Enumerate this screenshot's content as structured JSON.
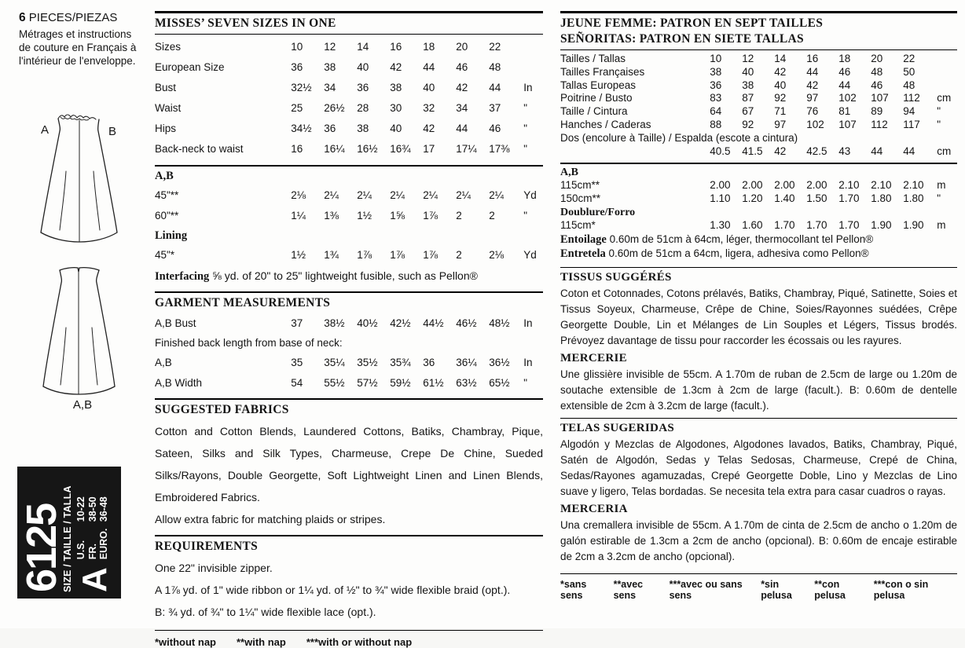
{
  "sidebar": {
    "pieces_number": "6",
    "pieces_label": "PIECES/PIEZAS",
    "note_lines": [
      "Métrages et instructions",
      "de couture en Français à",
      "l'intérieur de l'enveloppe."
    ],
    "front_view": {
      "label_a": "A",
      "label_b": "B"
    },
    "back_view_label": "A,B",
    "size_block": {
      "number": "6125",
      "size_label": "SIZE / TAILLE / TALLA",
      "letter": "A",
      "ranges": [
        {
          "label": "U.S.",
          "value": "10-22"
        },
        {
          "label": "FR.",
          "value": "38-50"
        },
        {
          "label": "EURO.",
          "value": "36-48"
        }
      ]
    }
  },
  "left_column": {
    "title": "MISSES’ SEVEN SIZES IN ONE",
    "size_table": {
      "rows": [
        {
          "label": "Sizes",
          "values": [
            "10",
            "12",
            "14",
            "16",
            "18",
            "20",
            "22"
          ],
          "unit": ""
        },
        {
          "label": "European Size",
          "values": [
            "36",
            "38",
            "40",
            "42",
            "44",
            "46",
            "48"
          ],
          "unit": ""
        },
        {
          "label": "Bust",
          "values": [
            "32½",
            "34",
            "36",
            "38",
            "40",
            "42",
            "44"
          ],
          "unit": "In"
        },
        {
          "label": "Waist",
          "values": [
            "25",
            "26½",
            "28",
            "30",
            "32",
            "34",
            "37"
          ],
          "unit": "\""
        },
        {
          "label": "Hips",
          "values": [
            "34½",
            "36",
            "38",
            "40",
            "42",
            "44",
            "46"
          ],
          "unit": "\""
        },
        {
          "label": "Back-neck to waist",
          "values": [
            "16",
            "16¼",
            "16½",
            "16¾",
            "17",
            "17¼",
            "17⅜"
          ],
          "unit": "\""
        }
      ]
    },
    "yardage": {
      "ab_heading": "A,B",
      "rows": [
        {
          "label": "45\"**",
          "values": [
            "2⅛",
            "2¼",
            "2¼",
            "2¼",
            "2¼",
            "2¼",
            "2¼"
          ],
          "unit": "Yd"
        },
        {
          "label": "60\"**",
          "values": [
            "1¼",
            "1⅜",
            "1½",
            "1⅝",
            "1⅞",
            "2",
            "2"
          ],
          "unit": "\""
        }
      ],
      "lining_heading": "Lining",
      "lining_row": {
        "label": "45\"*",
        "values": [
          "1½",
          "1¾",
          "1⅞",
          "1⅞",
          "1⅞",
          "2",
          "2⅛"
        ],
        "unit": "Yd"
      },
      "interfacing_label": "Interfacing",
      "interfacing_text": " ⅝ yd. of 20\" to 25\" lightweight fusible, such as Pellon®"
    },
    "garment": {
      "title": "GARMENT MEASUREMENTS",
      "bust_row": {
        "label": "A,B Bust",
        "values": [
          "37",
          "38½",
          "40½",
          "42½",
          "44½",
          "46½",
          "48½"
        ],
        "unit": "In"
      },
      "note": "Finished back length from base of neck:",
      "rows": [
        {
          "label": "A,B",
          "values": [
            "35",
            "35¼",
            "35½",
            "35¾",
            "36",
            "36¼",
            "36½"
          ],
          "unit": "In"
        },
        {
          "label": "A,B Width",
          "values": [
            "54",
            "55½",
            "57½",
            "59½",
            "61½",
            "63½",
            "65½"
          ],
          "unit": "\""
        }
      ]
    },
    "fabrics": {
      "title": "SUGGESTED FABRICS",
      "body": "Cotton and Cotton Blends, Laundered Cottons, Batiks, Chambray, Pique, Sateen, Silks and Silk Types, Charmeuse, Crepe De Chine, Sueded Silks/Rayons, Double Georgette, Soft Lightweight Linen and Linen Blends, Embroidered Fabrics.",
      "note": "Allow extra fabric for matching plaids or stripes."
    },
    "requirements": {
      "title": "REQUIREMENTS",
      "lines": [
        "One 22\" invisible zipper.",
        "A 1⅞ yd. of 1\" wide ribbon or 1¼ yd. of ½\" to ¾\" wide flexible braid (opt.).",
        "B: ¾ yd. of ¾\" to 1¼\" wide flexible lace (opt.)."
      ]
    },
    "footnotes": [
      "*without nap",
      "**with nap",
      "***with or without nap"
    ]
  },
  "right_column": {
    "title_fr": "JEUNE FEMME: PATRON EN SEPT TAILLES",
    "title_es": "SEÑORITAS: PATRON EN SIETE TALLAS",
    "size_table": {
      "rows": [
        {
          "label": "Tailles / Tallas",
          "values": [
            "10",
            "12",
            "14",
            "16",
            "18",
            "20",
            "22"
          ],
          "unit": ""
        },
        {
          "label": "Tailles Françaises",
          "values": [
            "38",
            "40",
            "42",
            "44",
            "46",
            "48",
            "50"
          ],
          "unit": ""
        },
        {
          "label": "Tallas Europeas",
          "values": [
            "36",
            "38",
            "40",
            "42",
            "44",
            "46",
            "48"
          ],
          "unit": ""
        },
        {
          "label": "Poitrine / Busto",
          "values": [
            "83",
            "87",
            "92",
            "97",
            "102",
            "107",
            "112"
          ],
          "unit": "cm"
        },
        {
          "label": "Taille / Cintura",
          "values": [
            "64",
            "67",
            "71",
            "76",
            "81",
            "89",
            "94"
          ],
          "unit": "\""
        },
        {
          "label": "Hanches / Caderas",
          "values": [
            "88",
            "92",
            "97",
            "102",
            "107",
            "112",
            "117"
          ],
          "unit": "\""
        }
      ],
      "dos_label": "Dos (encolure à Taille) / Espalda (escote a cintura)",
      "dos_row": {
        "values": [
          "40.5",
          "41.5",
          "42",
          "42.5",
          "43",
          "44",
          "44"
        ],
        "unit": "cm"
      }
    },
    "metric": {
      "ab_heading": "A,B",
      "rows": [
        {
          "label": "115cm**",
          "values": [
            "2.00",
            "2.00",
            "2.00",
            "2.00",
            "2.10",
            "2.10",
            "2.10"
          ],
          "unit": "m"
        },
        {
          "label": "150cm**",
          "values": [
            "1.10",
            "1.20",
            "1.40",
            "1.50",
            "1.70",
            "1.80",
            "1.80"
          ],
          "unit": "\""
        }
      ],
      "doublure_heading": "Doublure/Forro",
      "doublure_row": {
        "label": "115cm*",
        "values": [
          "1.30",
          "1.60",
          "1.70",
          "1.70",
          "1.70",
          "1.90",
          "1.90"
        ],
        "unit": "m"
      },
      "entoilage_label": "Entoilage",
      "entoilage_text": " 0.60m de 51cm à 64cm, léger, thermocollant tel Pellon®",
      "entretela_label": "Entretela",
      "entretela_text": " 0.60m de 51cm a 64cm, ligera, adhesiva como Pellon®"
    },
    "tissus": {
      "title": "TISSUS SUGGÉRÉS",
      "body": "Coton et Cotonnades, Cotons prélavés, Batiks, Chambray, Piqué, Satinette, Soies et Tissus Soyeux, Charmeuse, Crêpe de Chine, Soies/Rayonnes suédées, Crêpe Georgette Double, Lin et Mélanges de Lin Souples et Légers, Tissus brodés. Prévoyez davantage de tissu pour raccorder les écossais ou les rayures."
    },
    "mercerie": {
      "title": "MERCERIE",
      "body": "Une glissière invisible de 55cm. A 1.70m de ruban de 2.5cm de large ou 1.20m de soutache extensible de 1.3cm à 2cm de large (facult.). B: 0.60m de dentelle extensible de 2cm à 3.2cm de large (facult.)."
    },
    "telas": {
      "title": "TELAS SUGERIDAS",
      "body": "Algodón y Mezclas de Algodones, Algodones lavados, Batiks, Chambray, Piqué, Satén de Algodón, Sedas y Telas Sedosas, Charmeuse, Crepé de China, Sedas/Rayones agamuzadas, Crepé Georgette Doble, Lino y Mezclas de Lino suave y ligero, Telas bordadas. Se necesita tela extra para casar cuadros o rayas."
    },
    "merceria": {
      "title": "MERCERIA",
      "body": "Una cremallera invisible de 55cm. A 1.70m de cinta de 2.5cm de ancho o 1.20m de galón estirable de 1.3cm a 2cm de ancho (opcional). B: 0.60m de encaje estirable de 2cm a 3.2cm de ancho (opcional)."
    },
    "footnotes_fr": [
      "*sans sens",
      "**avec sens",
      "***avec ou sans sens"
    ],
    "footnotes_es": [
      "*sin pelusa",
      "**con pelusa",
      "***con o sin pelusa"
    ]
  }
}
